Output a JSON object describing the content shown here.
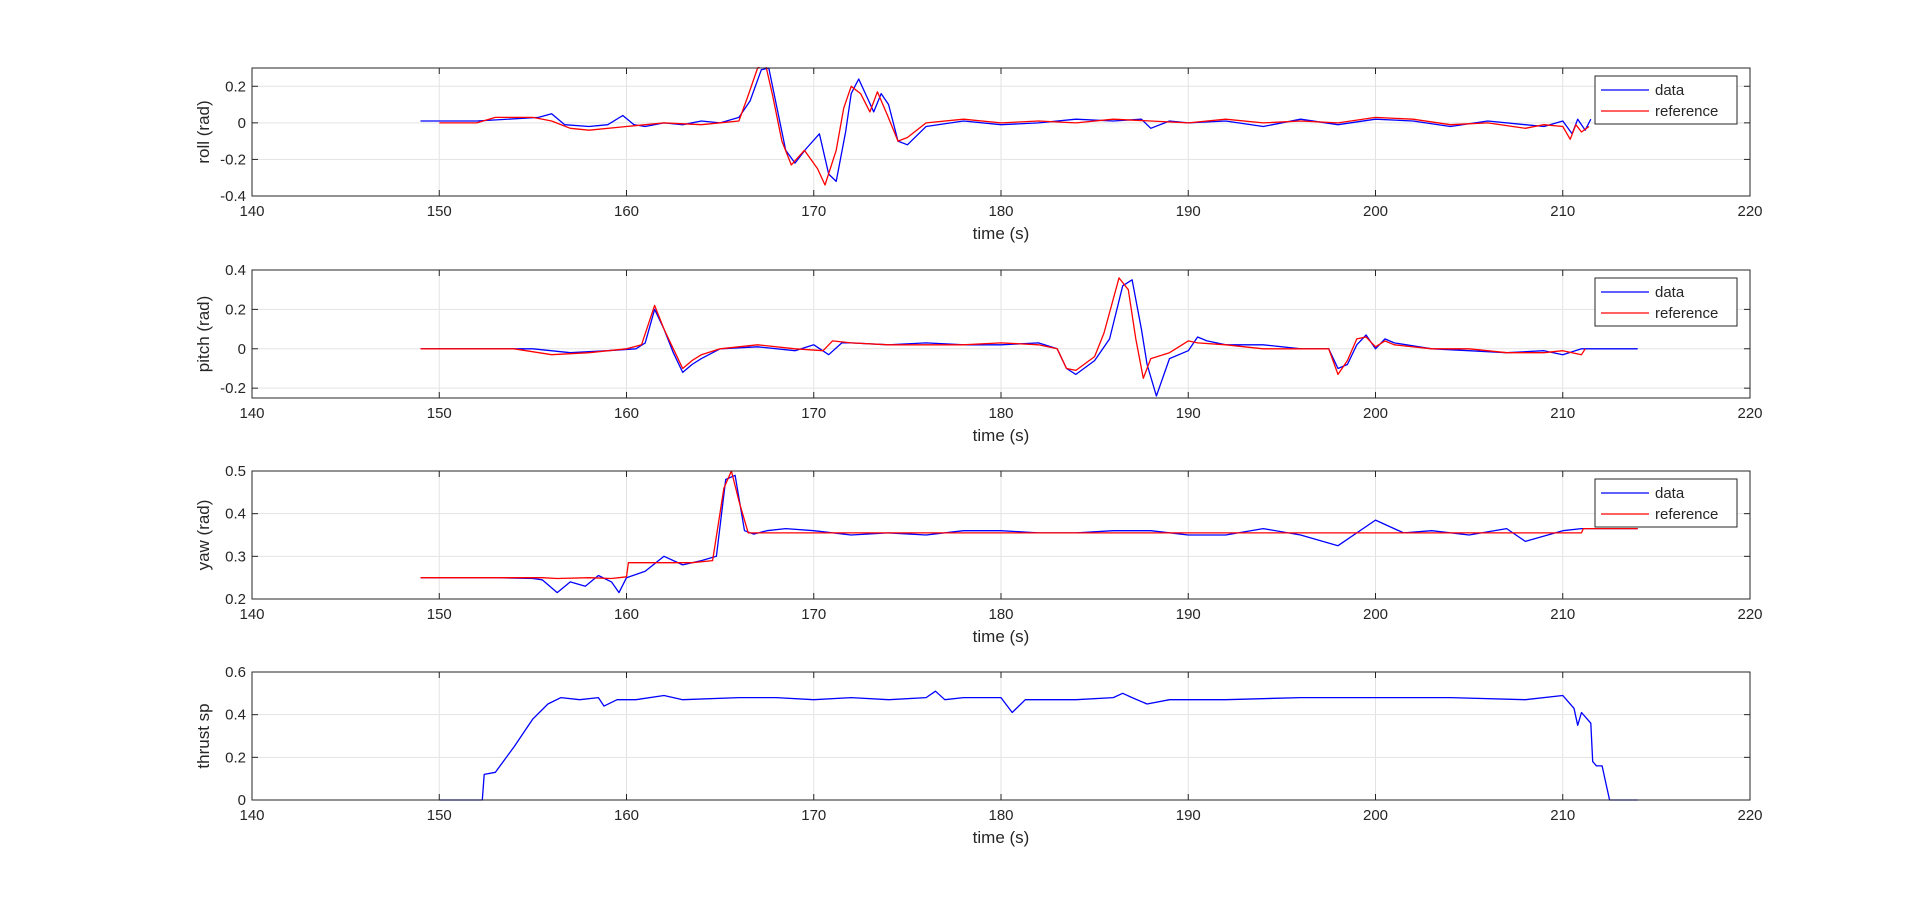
{
  "chart_data": [
    {
      "type": "line",
      "xlabel": "time (s)",
      "ylabel": "roll (rad)",
      "xlim": [
        140,
        220
      ],
      "ylim": [
        -0.4,
        0.3
      ],
      "xticks": [
        140,
        150,
        160,
        170,
        180,
        190,
        200,
        210,
        220
      ],
      "yticks": [
        -0.4,
        -0.2,
        0,
        0.2
      ],
      "ytick_labels": [
        "-0.4",
        "-0.2",
        "0",
        "0.2"
      ],
      "grid": true,
      "legend": {
        "location": "top-right",
        "entries": [
          "data",
          "reference"
        ]
      },
      "series": [
        {
          "name": "data",
          "color": "#0000ff",
          "x": [
            149,
            152,
            155.3,
            156,
            156.7,
            158,
            159,
            159.8,
            160.4,
            161,
            162,
            163,
            164,
            165,
            166,
            166.6,
            167.2,
            167.6,
            168,
            168.5,
            169,
            169.6,
            170.3,
            170.8,
            171.2,
            171.7,
            172,
            172.4,
            172.8,
            173.2,
            173.6,
            174,
            174.5,
            175,
            176,
            178,
            180,
            182,
            184,
            186,
            187.5,
            188,
            189,
            190,
            192,
            194,
            196,
            198,
            200,
            202,
            204,
            206,
            208,
            209,
            210,
            210.5,
            210.8,
            211.2,
            211.5
          ],
          "y": [
            0.01,
            0.01,
            0.03,
            0.05,
            -0.01,
            -0.02,
            -0.01,
            0.04,
            -0.01,
            -0.02,
            0.0,
            -0.01,
            0.01,
            0.0,
            0.03,
            0.12,
            0.29,
            0.3,
            0.1,
            -0.15,
            -0.22,
            -0.14,
            -0.06,
            -0.28,
            -0.32,
            -0.05,
            0.16,
            0.24,
            0.15,
            0.06,
            0.16,
            0.1,
            -0.1,
            -0.12,
            -0.02,
            0.01,
            -0.01,
            0.0,
            0.02,
            0.01,
            0.02,
            -0.03,
            0.01,
            0.0,
            0.01,
            -0.02,
            0.02,
            -0.01,
            0.02,
            0.01,
            -0.02,
            0.01,
            -0.01,
            -0.02,
            0.01,
            -0.06,
            0.02,
            -0.04,
            0.02
          ]
        },
        {
          "name": "reference",
          "color": "#ff0000",
          "x": [
            150,
            152,
            153,
            155,
            156,
            157,
            158,
            160,
            162,
            164,
            166,
            166.5,
            167,
            167.4,
            167.8,
            168.3,
            168.8,
            169.5,
            170.2,
            170.6,
            171.2,
            171.6,
            172,
            172.5,
            173,
            173.4,
            173.9,
            174.5,
            175,
            176,
            178,
            180,
            182,
            184,
            186,
            188,
            190,
            192,
            194,
            196,
            198,
            200,
            202,
            204,
            206,
            208,
            209,
            210,
            210.4,
            210.7,
            211,
            211.4
          ],
          "y": [
            0.0,
            0.0,
            0.03,
            0.03,
            0.01,
            -0.03,
            -0.04,
            -0.02,
            0.0,
            -0.01,
            0.01,
            0.15,
            0.3,
            0.33,
            0.15,
            -0.1,
            -0.23,
            -0.15,
            -0.25,
            -0.34,
            -0.15,
            0.08,
            0.2,
            0.16,
            0.06,
            0.17,
            0.05,
            -0.1,
            -0.08,
            0.0,
            0.02,
            0.0,
            0.01,
            0.0,
            0.02,
            0.01,
            0.0,
            0.02,
            0.0,
            0.01,
            0.0,
            0.03,
            0.02,
            -0.01,
            0.0,
            -0.03,
            -0.01,
            -0.02,
            -0.09,
            -0.01,
            -0.05,
            -0.02
          ]
        }
      ]
    },
    {
      "type": "line",
      "xlabel": "time (s)",
      "ylabel": "pitch (rad)",
      "xlim": [
        140,
        220
      ],
      "ylim": [
        -0.25,
        0.4
      ],
      "xticks": [
        140,
        150,
        160,
        170,
        180,
        190,
        200,
        210,
        220
      ],
      "yticks": [
        -0.2,
        0,
        0.2,
        0.4
      ],
      "ytick_labels": [
        "-0.2",
        "0",
        "0.2",
        "0.4"
      ],
      "grid": true,
      "legend": {
        "location": "top-right",
        "entries": [
          "data",
          "reference"
        ]
      },
      "series": [
        {
          "name": "data",
          "color": "#0000ff",
          "x": [
            149,
            153,
            155,
            157,
            159,
            160.5,
            161,
            161.5,
            162,
            162.5,
            163,
            163.5,
            164,
            165,
            167,
            169,
            170,
            170.8,
            171.5,
            172,
            174,
            176,
            178,
            180,
            182,
            183,
            183.5,
            184,
            185,
            185.8,
            186.5,
            187,
            187.5,
            187.8,
            188.3,
            189,
            190,
            190.5,
            191,
            192,
            194,
            196,
            197.5,
            198,
            198.5,
            199,
            199.5,
            200,
            200.5,
            201,
            203,
            205,
            207,
            209,
            210,
            211,
            212,
            214
          ],
          "y": [
            0.0,
            0.0,
            0.0,
            -0.02,
            -0.01,
            0.0,
            0.03,
            0.2,
            0.1,
            -0.02,
            -0.12,
            -0.08,
            -0.05,
            0.0,
            0.01,
            -0.01,
            0.02,
            -0.03,
            0.03,
            0.03,
            0.02,
            0.03,
            0.02,
            0.02,
            0.03,
            0.0,
            -0.1,
            -0.13,
            -0.06,
            0.05,
            0.32,
            0.35,
            0.1,
            -0.08,
            -0.24,
            -0.05,
            -0.01,
            0.06,
            0.04,
            0.02,
            0.02,
            0.0,
            0.0,
            -0.1,
            -0.08,
            0.02,
            0.07,
            0.0,
            0.05,
            0.03,
            0.0,
            -0.01,
            -0.02,
            -0.01,
            -0.03,
            0.0,
            0.0,
            0.0
          ]
        },
        {
          "name": "reference",
          "color": "#ff0000",
          "x": [
            149,
            154,
            156,
            158,
            160,
            160.8,
            161.5,
            162,
            162.5,
            163,
            163.5,
            164,
            165,
            167,
            169,
            170.5,
            171,
            172,
            174,
            176,
            178,
            180,
            182,
            183,
            183.5,
            184,
            185,
            185.5,
            186.3,
            186.8,
            187.2,
            187.6,
            188,
            189,
            190,
            190.5,
            192,
            194,
            196,
            197.5,
            198,
            198.5,
            199,
            199.5,
            200,
            200.5,
            201,
            203,
            205,
            207,
            209,
            210,
            211,
            211.2
          ],
          "y": [
            0.0,
            0.0,
            -0.03,
            -0.02,
            0.0,
            0.02,
            0.22,
            0.1,
            0.0,
            -0.1,
            -0.06,
            -0.03,
            0.0,
            0.02,
            0.0,
            -0.01,
            0.04,
            0.03,
            0.02,
            0.02,
            0.02,
            0.03,
            0.02,
            0.0,
            -0.1,
            -0.11,
            -0.04,
            0.08,
            0.36,
            0.3,
            0.05,
            -0.15,
            -0.05,
            -0.02,
            0.04,
            0.03,
            0.02,
            0.0,
            0.0,
            0.0,
            -0.13,
            -0.06,
            0.05,
            0.06,
            0.01,
            0.04,
            0.02,
            0.0,
            0.0,
            -0.02,
            -0.02,
            -0.01,
            -0.03,
            0.0
          ]
        }
      ]
    },
    {
      "type": "line",
      "xlabel": "time (s)",
      "ylabel": "yaw (rad)",
      "xlim": [
        140,
        220
      ],
      "ylim": [
        0.2,
        0.5
      ],
      "xticks": [
        140,
        150,
        160,
        170,
        180,
        190,
        200,
        210,
        220
      ],
      "yticks": [
        0.2,
        0.3,
        0.4,
        0.5
      ],
      "ytick_labels": [
        "0.2",
        "0.3",
        "0.4",
        "0.5"
      ],
      "grid": true,
      "legend": {
        "location": "top-right",
        "entries": [
          "data",
          "reference"
        ]
      },
      "series": [
        {
          "name": "data",
          "color": "#0000ff",
          "x": [
            149,
            153,
            155,
            155.5,
            156.3,
            157,
            157.8,
            158.5,
            159.2,
            159.6,
            160,
            161,
            162,
            163,
            164,
            164.8,
            165.3,
            165.8,
            166.3,
            166.8,
            167.5,
            168.5,
            170,
            172,
            174,
            176,
            178,
            180,
            182,
            184,
            186,
            188,
            190,
            192,
            194,
            196,
            198,
            200,
            201.5,
            203,
            205,
            207,
            208,
            210,
            211,
            214
          ],
          "y": [
            0.25,
            0.25,
            0.248,
            0.245,
            0.215,
            0.24,
            0.23,
            0.255,
            0.24,
            0.215,
            0.25,
            0.265,
            0.3,
            0.28,
            0.29,
            0.3,
            0.48,
            0.49,
            0.36,
            0.352,
            0.36,
            0.365,
            0.36,
            0.35,
            0.355,
            0.35,
            0.36,
            0.36,
            0.355,
            0.355,
            0.36,
            0.36,
            0.35,
            0.35,
            0.365,
            0.35,
            0.325,
            0.385,
            0.355,
            0.36,
            0.35,
            0.365,
            0.335,
            0.36,
            0.365,
            0.365
          ]
        },
        {
          "name": "reference",
          "color": "#ff0000",
          "x": [
            149,
            155.5,
            156.3,
            158,
            159.2,
            159.6,
            160,
            160.1,
            163.5,
            164.6,
            165.2,
            165.6,
            166,
            166.5,
            211,
            211.1,
            214
          ],
          "y": [
            0.25,
            0.25,
            0.248,
            0.25,
            0.248,
            0.25,
            0.252,
            0.285,
            0.285,
            0.29,
            0.46,
            0.5,
            0.43,
            0.355,
            0.355,
            0.365,
            0.365
          ]
        }
      ]
    },
    {
      "type": "line",
      "xlabel": "time (s)",
      "ylabel": "thrust sp",
      "xlim": [
        140,
        220
      ],
      "ylim": [
        0,
        0.6
      ],
      "xticks": [
        140,
        150,
        160,
        170,
        180,
        190,
        200,
        210,
        220
      ],
      "yticks": [
        0,
        0.2,
        0.4,
        0.6
      ],
      "ytick_labels": [
        "0",
        "0.2",
        "0.4",
        "0.6"
      ],
      "grid": true,
      "series": [
        {
          "name": "thrust sp",
          "color": "#0000ff",
          "x": [
            150,
            152.3,
            152.4,
            153,
            154,
            155,
            155.8,
            156.5,
            157.5,
            158.5,
            158.8,
            159.5,
            160.5,
            162,
            163,
            166,
            168,
            170,
            172,
            174,
            176,
            176.5,
            177,
            178,
            180,
            180.6,
            181.3,
            182,
            184,
            186,
            186.5,
            187,
            187.8,
            189,
            192,
            196,
            200,
            204,
            208,
            210,
            210.3,
            210.6,
            210.8,
            211,
            211.3,
            211.5,
            211.6,
            211.8,
            212.1,
            212.3,
            212.5,
            214
          ],
          "y": [
            0,
            0,
            0.12,
            0.13,
            0.25,
            0.38,
            0.45,
            0.48,
            0.47,
            0.48,
            0.44,
            0.47,
            0.47,
            0.49,
            0.47,
            0.48,
            0.48,
            0.47,
            0.48,
            0.47,
            0.48,
            0.51,
            0.47,
            0.48,
            0.48,
            0.41,
            0.47,
            0.47,
            0.47,
            0.48,
            0.5,
            0.48,
            0.45,
            0.47,
            0.47,
            0.48,
            0.48,
            0.48,
            0.47,
            0.49,
            0.46,
            0.43,
            0.35,
            0.41,
            0.38,
            0.36,
            0.18,
            0.16,
            0.16,
            0.08,
            0,
            0
          ]
        }
      ]
    }
  ]
}
